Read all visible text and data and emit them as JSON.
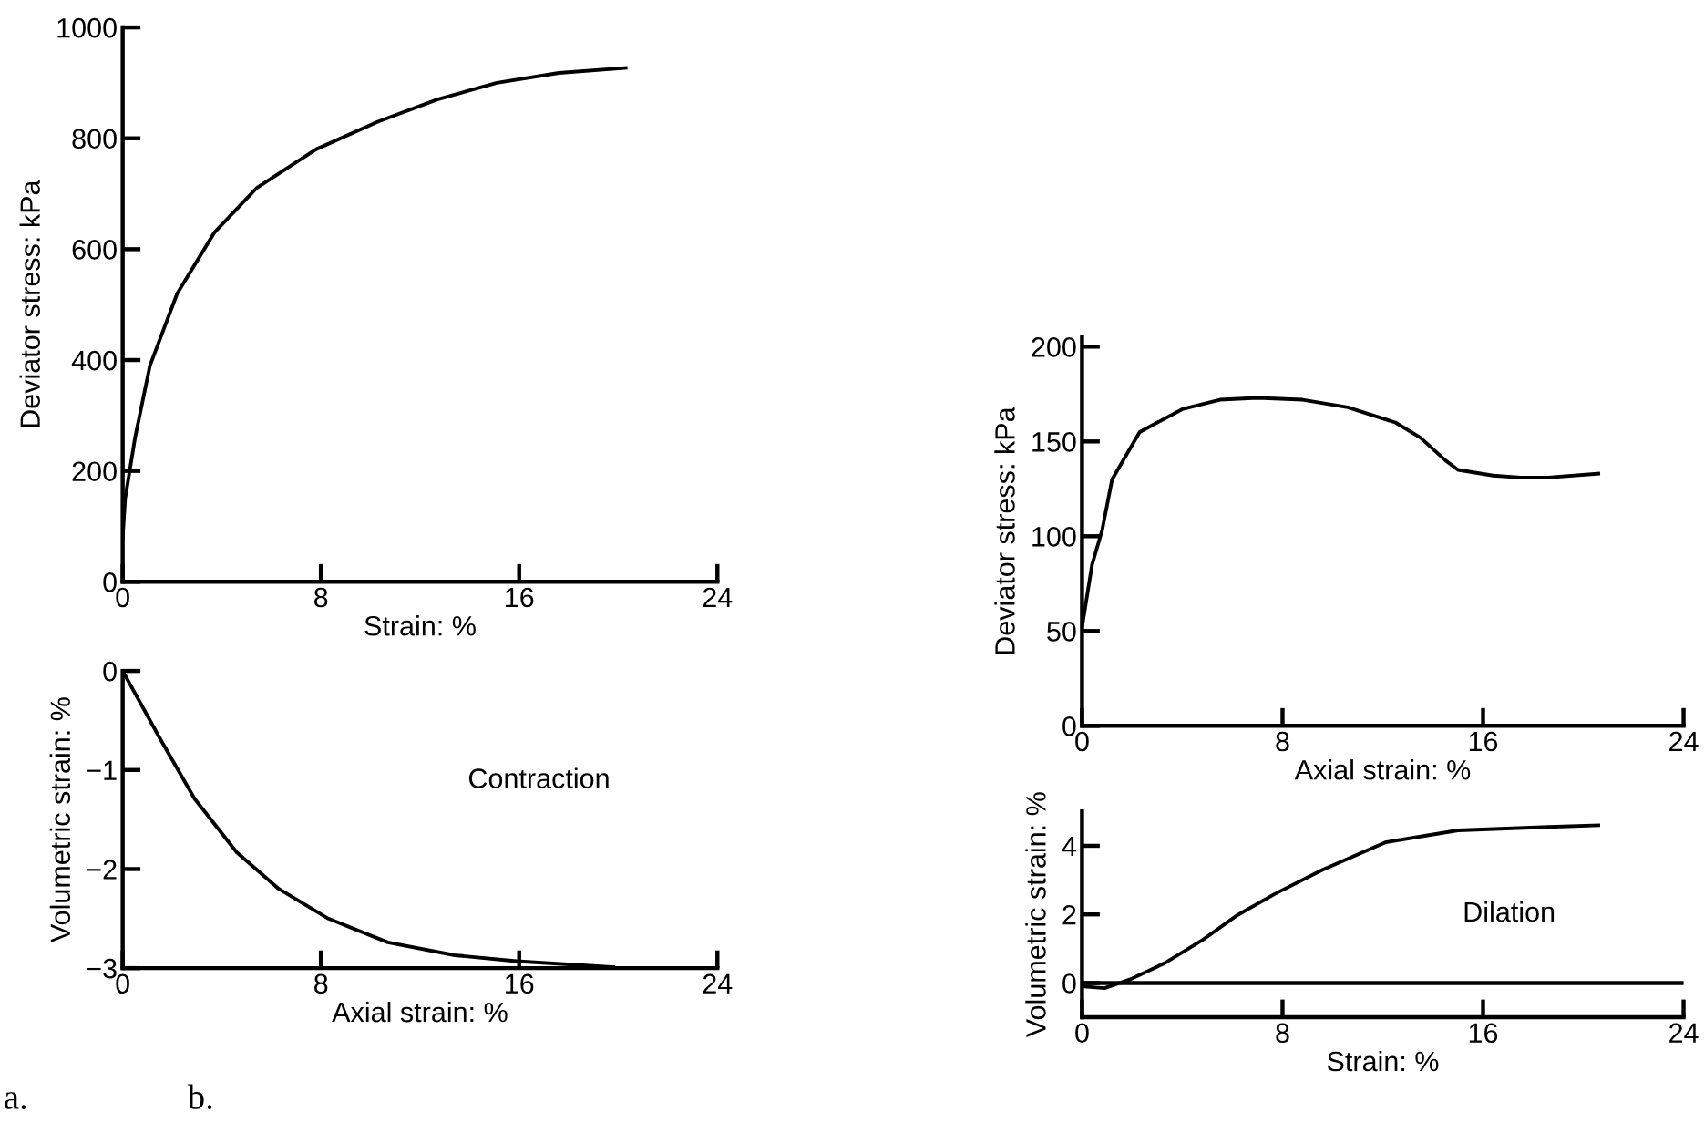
{
  "chart_data": [
    {
      "type": "line",
      "xlabel": "Strain: %",
      "ylabel": "Deviator stress: kPa",
      "xlim": [
        0,
        24
      ],
      "xticks": [
        0,
        8,
        16,
        24
      ],
      "ylim": [
        0,
        1000
      ],
      "yticks": [
        0,
        200,
        400,
        600,
        800,
        1000
      ],
      "grid": false,
      "legend": false,
      "series": [
        {
          "color": "#000000",
          "x": [
            0,
            0.1,
            0.5,
            1.1,
            2.2,
            3.7,
            5.4,
            7.8,
            10.3,
            12.7,
            15.1,
            17.6,
            20.3
          ],
          "values": [
            80,
            150,
            260,
            390,
            520,
            630,
            710,
            780,
            830,
            870,
            900,
            918,
            927
          ]
        }
      ]
    },
    {
      "type": "line",
      "xlabel": "Axial strain: %",
      "ylabel": "Deviator stress: kPa",
      "xlim": [
        0,
        24
      ],
      "xticks": [
        0,
        8,
        16,
        24
      ],
      "ylim": [
        0,
        205
      ],
      "yticks": [
        0,
        50,
        100,
        150,
        200
      ],
      "grid": false,
      "legend": false,
      "series": [
        {
          "color": "#000000",
          "x": [
            0,
            0.4,
            0.8,
            1.2,
            2.3,
            4,
            5.5,
            7,
            8.8,
            10.6,
            12.5,
            13.5,
            14.5,
            15,
            16.4,
            17.5,
            18.6,
            20.6
          ],
          "values": [
            52,
            85,
            103,
            130,
            155,
            167,
            172,
            173,
            172,
            168,
            160,
            152,
            140,
            135,
            132,
            131,
            131,
            133
          ]
        }
      ]
    },
    {
      "type": "line",
      "xlabel": "Axial strain: %",
      "ylabel": "Volumetric strain: %",
      "xlim": [
        0,
        24
      ],
      "xticks": [
        0,
        8,
        16,
        24
      ],
      "ylim": [
        -3,
        0
      ],
      "yticks": [
        {
          "value": 0,
          "label": "0"
        },
        {
          "value": -1,
          "label": "−1"
        },
        {
          "value": -2,
          "label": "−2"
        },
        {
          "value": -3,
          "label": "−3"
        }
      ],
      "grid": false,
      "legend": false,
      "annotations": [
        "Contraction",
        "a."
      ],
      "series": [
        {
          "color": "#000000",
          "x": [
            0,
            1.5,
            2.9,
            4.6,
            6.3,
            8.3,
            10.7,
            13.4,
            15.9,
            19.8
          ],
          "values": [
            0,
            -0.68,
            -1.29,
            -1.83,
            -2.2,
            -2.5,
            -2.74,
            -2.87,
            -2.93,
            -2.99
          ]
        }
      ]
    },
    {
      "type": "line",
      "xlabel": "Strain: %",
      "ylabel": "Volumetric strain: %",
      "xlim": [
        0,
        24
      ],
      "xticks": [
        0,
        8,
        16,
        24
      ],
      "ylim": [
        -1,
        5
      ],
      "yticks": [
        0,
        2,
        4
      ],
      "grid": false,
      "legend": false,
      "annotations": [
        "Dilation",
        "b."
      ],
      "ref_lines": [
        {
          "axis": "y",
          "value": 0,
          "color": "#000000"
        }
      ],
      "series": [
        {
          "color": "#000000",
          "x": [
            0,
            0.9,
            1.9,
            3.3,
            4.8,
            6.2,
            7.7,
            9.6,
            12.1,
            15,
            18.6,
            20.6
          ],
          "values": [
            -0.1,
            -0.15,
            0.1,
            0.58,
            1.25,
            1.98,
            2.6,
            3.3,
            4.1,
            4.45,
            4.55,
            4.6
          ]
        }
      ]
    }
  ]
}
